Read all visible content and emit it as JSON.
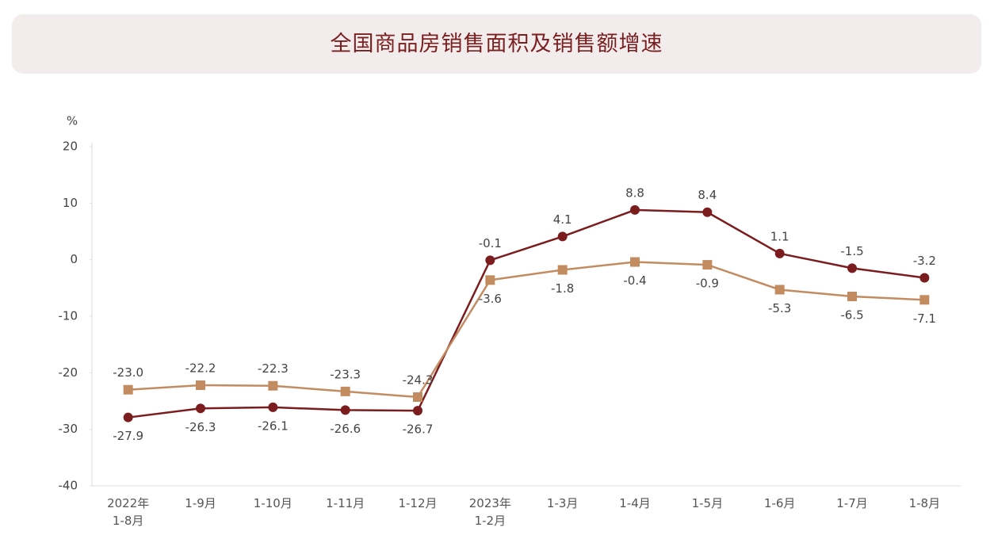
{
  "chart_data": {
    "type": "line",
    "title": "全国商品房销售面积及销售额增速",
    "y_label": "%",
    "categories": [
      "2022年\n1-8月",
      "1-9月",
      "1-10月",
      "1-11月",
      "1-12月",
      "2023年\n1-2月",
      "1-3月",
      "1-4月",
      "1-5月",
      "1-6月",
      "1-7月",
      "1-8月"
    ],
    "series": [
      {
        "color": "#7b1c1f",
        "marker": "circle",
        "values": [
          -27.9,
          -26.3,
          -26.1,
          -26.6,
          -26.7,
          -0.1,
          4.1,
          8.8,
          8.4,
          1.1,
          -1.5,
          -3.2
        ],
        "value_labels": [
          "-27.9",
          "-26.3",
          "-26.1",
          "-26.6",
          "-26.7",
          "-0.1",
          "4.1",
          "8.8",
          "8.4",
          "1.1",
          "-1.5",
          "-3.2"
        ]
      },
      {
        "color": "#c38b60",
        "marker": "square",
        "values": [
          -23.0,
          -22.2,
          -22.3,
          -23.3,
          -24.3,
          -3.6,
          -1.8,
          -0.4,
          -0.9,
          -5.3,
          -6.5,
          -7.1
        ],
        "value_labels": [
          "-23.0",
          "-22.2",
          "-22.3",
          "-23.3",
          "-24.3",
          "-3.6",
          "-1.8",
          "-0.4",
          "-0.9",
          "-5.3",
          "-6.5",
          "-7.1"
        ]
      }
    ],
    "ylim": [
      -40,
      20
    ],
    "yticks": [
      -40,
      -30,
      -20,
      -10,
      0,
      10,
      20
    ],
    "grid": false
  }
}
